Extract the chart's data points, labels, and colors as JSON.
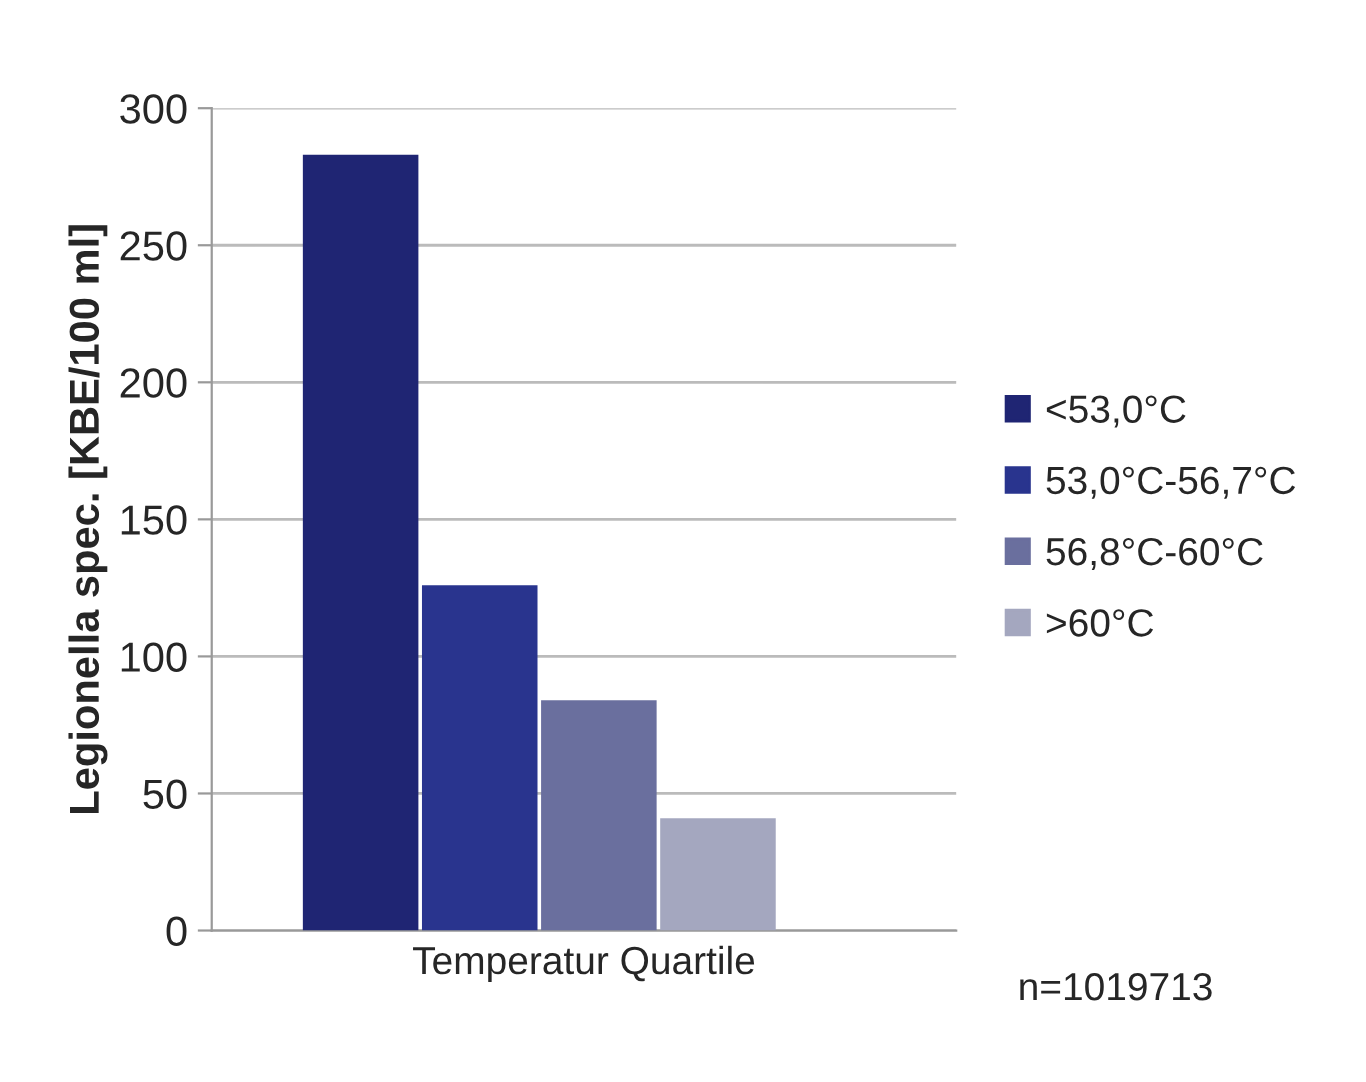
{
  "chart_data": {
    "type": "bar",
    "xlabel": "Temperatur Quartile",
    "ylabel": "Legionella spec. [KBE/100 ml]",
    "categories": [
      null,
      null,
      null,
      null
    ],
    "stacked": true,
    "series": [
      {
        "name": "<53,0°C",
        "color": "#1f2573",
        "values": [
          283,
          null,
          null,
          null
        ]
      },
      {
        "name": "53,0°C-56,7°C",
        "color": "#29348e",
        "values": [
          null,
          126,
          null,
          null
        ]
      },
      {
        "name": "56,8°C-60°C",
        "color": "#6a6f9e",
        "values": [
          null,
          null,
          84,
          null
        ]
      },
      {
        "name": ">60°C",
        "color": "#a4a7bf",
        "values": [
          null,
          null,
          null,
          41
        ]
      }
    ],
    "ylim": [
      0,
      300
    ],
    "yticks": [
      0,
      50,
      100,
      150,
      200,
      250,
      300
    ],
    "grid": "y",
    "legend": "right",
    "annotations": [
      "n=1019713"
    ]
  }
}
